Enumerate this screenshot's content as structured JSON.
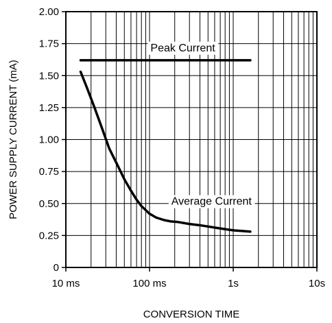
{
  "chart_data": {
    "type": "line",
    "title": "",
    "xlabel": "CONVERSION TIME",
    "ylabel": "POWER SUPPLY CURRENT (mA)",
    "x_scale": "log",
    "x_unit": "s",
    "xlim": [
      0.01,
      10
    ],
    "ylim": [
      0,
      2.0
    ],
    "grid": true,
    "x_ticks": [
      {
        "value": 0.01,
        "label": "10 ms"
      },
      {
        "value": 0.1,
        "label": "100 ms"
      },
      {
        "value": 1,
        "label": "1s"
      },
      {
        "value": 10,
        "label": "10s"
      }
    ],
    "y_ticks": [
      {
        "value": 0,
        "label": "0"
      },
      {
        "value": 0.25,
        "label": "0.25"
      },
      {
        "value": 0.5,
        "label": "0.50"
      },
      {
        "value": 0.75,
        "label": "0.75"
      },
      {
        "value": 1.0,
        "label": "1.00"
      },
      {
        "value": 1.25,
        "label": "1.25"
      },
      {
        "value": 1.5,
        "label": "1.50"
      },
      {
        "value": 1.75,
        "label": "1.75"
      },
      {
        "value": 2.0,
        "label": "2.00"
      }
    ],
    "series": [
      {
        "name": "Peak Current",
        "x": [
          0.015,
          1.6
        ],
        "y": [
          1.62,
          1.62
        ]
      },
      {
        "name": "Average Current",
        "x": [
          0.015,
          0.018,
          0.022,
          0.027,
          0.033,
          0.04,
          0.05,
          0.06,
          0.07,
          0.08,
          0.1,
          0.12,
          0.15,
          0.18,
          0.22,
          0.3,
          0.4,
          0.5,
          0.7,
          1.0,
          1.3,
          1.6
        ],
        "y": [
          1.53,
          1.4,
          1.25,
          1.09,
          0.93,
          0.82,
          0.69,
          0.6,
          0.53,
          0.48,
          0.42,
          0.39,
          0.37,
          0.36,
          0.355,
          0.34,
          0.33,
          0.32,
          0.305,
          0.29,
          0.285,
          0.28
        ]
      }
    ]
  }
}
